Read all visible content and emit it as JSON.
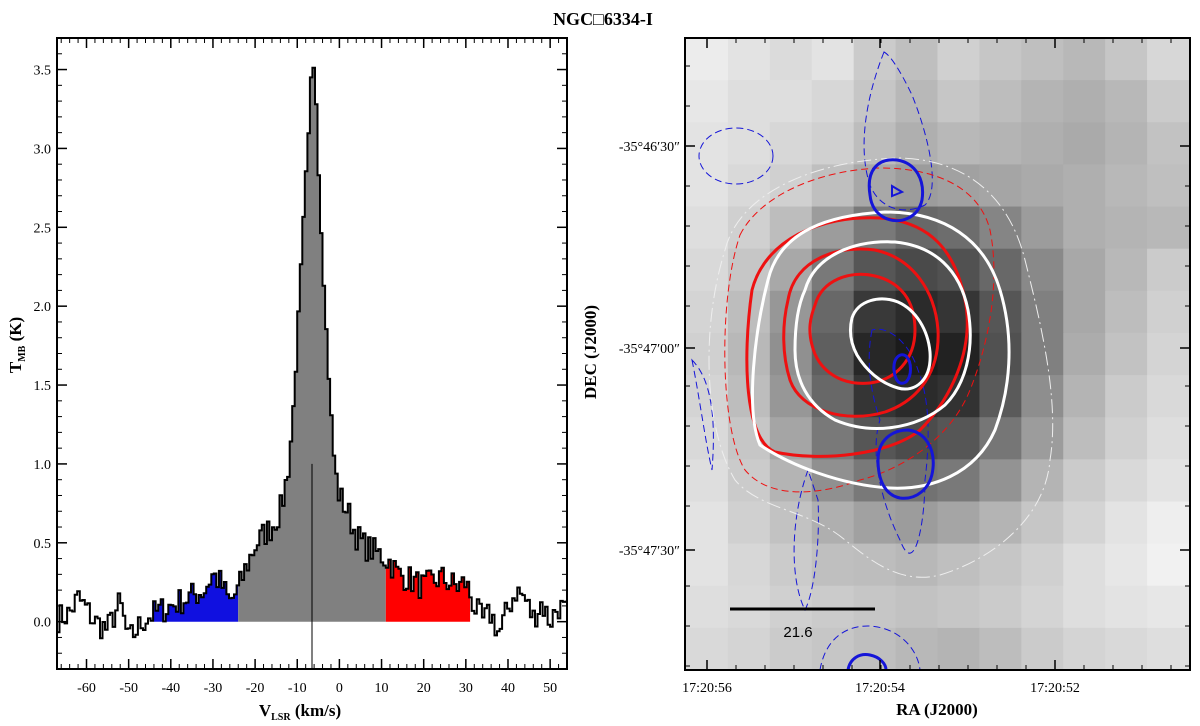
{
  "figure_title": "NGC□6334-I",
  "chart_data": [
    {
      "type": "line",
      "subtype": "step-histogram spectrum",
      "xlabel_main": "V",
      "xlabel_sub": "LSR",
      "xlabel_unit": " (km/s)",
      "ylabel_main": "T",
      "ylabel_sub": "MB",
      "ylabel_unit": " (K)",
      "xlim": [
        -67,
        54
      ],
      "ylim": [
        -0.3,
        3.7
      ],
      "x_ticks": [
        -60,
        -50,
        -40,
        -30,
        -20,
        -10,
        0,
        10,
        20,
        30,
        40,
        50
      ],
      "y_ticks": [
        0.0,
        0.5,
        1.0,
        1.5,
        2.0,
        2.5,
        3.0,
        3.5
      ],
      "x_tick_labels": [
        "-60",
        "-50",
        "-40",
        "-30",
        "-20",
        "-10",
        "0",
        "10",
        "20",
        "30",
        "40",
        "50"
      ],
      "y_tick_labels": [
        "0.0",
        "0.5",
        "1.0",
        "1.5",
        "2.0",
        "2.5",
        "3.0",
        "3.5"
      ],
      "systemic_velocity": -6.5,
      "systemic_marker_top": 1.0,
      "shaded_ranges": [
        {
          "name": "blue wing",
          "from": -44,
          "to": -24,
          "color": "#1010e0"
        },
        {
          "name": "core",
          "from": -24,
          "to": 11,
          "color": "#808080"
        },
        {
          "name": "red wing",
          "from": 11,
          "to": 31,
          "color": "#ff0000"
        }
      ],
      "spectrum_anchors": [
        [
          -67,
          0.02
        ],
        [
          -64,
          0.05
        ],
        [
          -62,
          0.15
        ],
        [
          -60,
          0.08
        ],
        [
          -58,
          0.0
        ],
        [
          -55,
          -0.05
        ],
        [
          -52,
          0.12
        ],
        [
          -50,
          -0.12
        ],
        [
          -48,
          -0.05
        ],
        [
          -46,
          0.02
        ],
        [
          -44,
          0.05
        ],
        [
          -40,
          0.1
        ],
        [
          -36,
          0.15
        ],
        [
          -32,
          0.2
        ],
        [
          -30,
          0.3
        ],
        [
          -28,
          0.24
        ],
        [
          -26,
          0.12
        ],
        [
          -24,
          0.2
        ],
        [
          -22,
          0.35
        ],
        [
          -20,
          0.48
        ],
        [
          -18,
          0.55
        ],
        [
          -16,
          0.6
        ],
        [
          -14,
          0.7
        ],
        [
          -13,
          0.82
        ],
        [
          -12,
          1.0
        ],
        [
          -11,
          1.3
        ],
        [
          -10,
          1.8
        ],
        [
          -9,
          2.3
        ],
        [
          -8,
          2.8
        ],
        [
          -7,
          3.2
        ],
        [
          -6.5,
          3.6
        ],
        [
          -6,
          3.5
        ],
        [
          -5.5,
          3.3
        ],
        [
          -5,
          2.9
        ],
        [
          -4,
          2.3
        ],
        [
          -3,
          1.8
        ],
        [
          -2,
          1.3
        ],
        [
          -1,
          0.95
        ],
        [
          0,
          0.8
        ],
        [
          1,
          0.75
        ],
        [
          2,
          0.7
        ],
        [
          3,
          0.62
        ],
        [
          4,
          0.55
        ],
        [
          6,
          0.48
        ],
        [
          8,
          0.45
        ],
        [
          10,
          0.42
        ],
        [
          12,
          0.38
        ],
        [
          14,
          0.3
        ],
        [
          16,
          0.28
        ],
        [
          20,
          0.22
        ],
        [
          24,
          0.28
        ],
        [
          28,
          0.22
        ],
        [
          30,
          0.25
        ],
        [
          32,
          0.1
        ],
        [
          34,
          0.0
        ],
        [
          36,
          0.05
        ],
        [
          38,
          -0.08
        ],
        [
          40,
          0.08
        ],
        [
          42,
          0.2
        ],
        [
          44,
          0.15
        ],
        [
          46,
          0.02
        ],
        [
          48,
          0.12
        ],
        [
          50,
          0.0
        ],
        [
          52,
          0.1
        ],
        [
          54,
          0.05
        ]
      ]
    },
    {
      "type": "heatmap",
      "subtype": "image with contours",
      "xlabel": "RA (J2000)",
      "ylabel": "DEC (J2000)",
      "x_tick_labels": [
        "17:20:56",
        "17:20:54",
        "17:20:52"
      ],
      "y_tick_labels": [
        "-35°46′30″",
        "-35°47′00″",
        "-35°47′30″"
      ],
      "scale_bar_label": "21.6",
      "grid_rows": 15,
      "grid_cols": 12,
      "pixel_intensity": [
        [
          0.06,
          0.1,
          0.13,
          0.1,
          0.2,
          0.25,
          0.18,
          0.22,
          0.25,
          0.28,
          0.22,
          0.15
        ],
        [
          0.08,
          0.12,
          0.12,
          0.15,
          0.22,
          0.28,
          0.22,
          0.26,
          0.3,
          0.32,
          0.28,
          0.2
        ],
        [
          0.1,
          0.12,
          0.15,
          0.18,
          0.26,
          0.32,
          0.28,
          0.3,
          0.32,
          0.34,
          0.3,
          0.24
        ],
        [
          0.1,
          0.14,
          0.18,
          0.25,
          0.35,
          0.4,
          0.38,
          0.36,
          0.34,
          0.32,
          0.28,
          0.25
        ],
        [
          0.12,
          0.18,
          0.26,
          0.4,
          0.55,
          0.62,
          0.6,
          0.5,
          0.4,
          0.32,
          0.3,
          0.28
        ],
        [
          0.14,
          0.22,
          0.35,
          0.55,
          0.7,
          0.75,
          0.72,
          0.62,
          0.48,
          0.35,
          0.28,
          0.2
        ],
        [
          0.16,
          0.26,
          0.42,
          0.62,
          0.82,
          0.88,
          0.84,
          0.7,
          0.52,
          0.35,
          0.26,
          0.18
        ],
        [
          0.18,
          0.28,
          0.45,
          0.66,
          0.9,
          0.95,
          0.92,
          0.72,
          0.52,
          0.33,
          0.24,
          0.16
        ],
        [
          0.16,
          0.26,
          0.42,
          0.62,
          0.84,
          0.88,
          0.85,
          0.68,
          0.46,
          0.3,
          0.2,
          0.14
        ],
        [
          0.14,
          0.22,
          0.36,
          0.55,
          0.7,
          0.74,
          0.7,
          0.56,
          0.4,
          0.26,
          0.18,
          0.12
        ],
        [
          0.12,
          0.2,
          0.3,
          0.45,
          0.55,
          0.58,
          0.55,
          0.44,
          0.3,
          0.2,
          0.14,
          0.1
        ],
        [
          0.1,
          0.18,
          0.24,
          0.32,
          0.38,
          0.4,
          0.36,
          0.3,
          0.22,
          0.16,
          0.1,
          0.05
        ],
        [
          0.1,
          0.15,
          0.2,
          0.25,
          0.26,
          0.28,
          0.25,
          0.22,
          0.18,
          0.12,
          0.08,
          0.04
        ],
        [
          0.12,
          0.14,
          0.18,
          0.2,
          0.22,
          0.24,
          0.22,
          0.2,
          0.16,
          0.12,
          0.1,
          0.08
        ],
        [
          0.14,
          0.16,
          0.2,
          0.22,
          0.25,
          0.28,
          0.3,
          0.26,
          0.2,
          0.16,
          0.14,
          0.12
        ]
      ],
      "contour_colors": {
        "white": "#ffffff",
        "red": "#ee1111",
        "blue": "#1515d8"
      }
    }
  ]
}
